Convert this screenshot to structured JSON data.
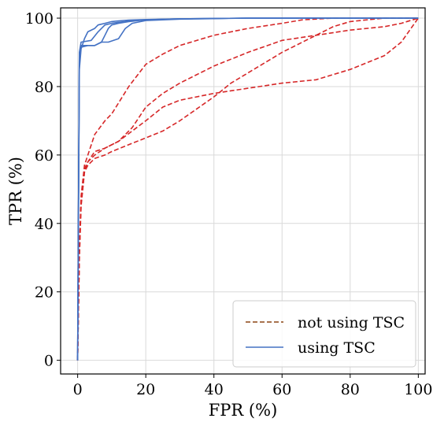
{
  "chart_data": {
    "type": "line",
    "title": "",
    "xlabel": "FPR (%)",
    "ylabel": "TPR (%)",
    "xlim": [
      -5,
      102
    ],
    "ylim": [
      -4,
      103
    ],
    "xticks": [
      0,
      20,
      40,
      60,
      80,
      100
    ],
    "yticks": [
      0,
      20,
      40,
      60,
      80,
      100
    ],
    "grid": true,
    "legend_position": "lower-right",
    "legend": [
      {
        "label": "not using TSC",
        "style": "dashed",
        "color": "#8B4513"
      },
      {
        "label": "using TSC",
        "style": "solid",
        "color": "#4472C4"
      }
    ],
    "series": [
      {
        "group": "not using TSC",
        "style": "dashed",
        "color": "#D62728",
        "x": [
          0,
          0.5,
          1,
          2,
          3,
          5,
          8,
          12,
          16,
          20,
          25,
          30,
          40,
          50,
          60,
          70,
          80,
          90,
          95,
          100
        ],
        "y": [
          0,
          30,
          45,
          55,
          58,
          60,
          62,
          64,
          67,
          70,
          74,
          76,
          78,
          79.5,
          81,
          82,
          85,
          89,
          93,
          100
        ]
      },
      {
        "group": "not using TSC",
        "style": "dashed",
        "color": "#D62728",
        "x": [
          0,
          0.5,
          1,
          2,
          3,
          5,
          8,
          10,
          15,
          20,
          25,
          30,
          40,
          50,
          60,
          66,
          75,
          85,
          100
        ],
        "y": [
          0,
          32,
          48,
          57,
          60,
          66,
          70,
          72,
          80,
          86.5,
          89.5,
          92,
          95,
          97,
          98.5,
          99.5,
          100,
          100,
          100
        ]
      },
      {
        "group": "not using TSC",
        "style": "dashed",
        "color": "#D62728",
        "x": [
          0,
          0.5,
          1,
          2,
          3,
          5,
          8,
          10,
          15,
          20,
          25,
          30,
          35,
          40,
          45,
          50,
          60,
          70,
          75,
          80,
          90,
          100
        ],
        "y": [
          0,
          30,
          46,
          55,
          57,
          59,
          60,
          61,
          63,
          65,
          67,
          70,
          73.5,
          77,
          81,
          84,
          90,
          95,
          97.5,
          99,
          100,
          100
        ]
      },
      {
        "group": "not using TSC",
        "style": "dashed",
        "color": "#D62728",
        "x": [
          0,
          0.5,
          1,
          2,
          3,
          5,
          8,
          12,
          16,
          20,
          25,
          30,
          40,
          50,
          60,
          70,
          80,
          90,
          95,
          100
        ],
        "y": [
          0,
          32,
          47,
          56,
          58,
          61,
          62,
          64,
          68,
          74,
          78,
          81,
          86,
          90,
          93.5,
          95,
          96.5,
          97.5,
          98.5,
          100
        ]
      },
      {
        "group": "using TSC",
        "style": "solid",
        "color": "#4472C4",
        "x": [
          0,
          0.5,
          1,
          4,
          6,
          8,
          10,
          12,
          14,
          16,
          20,
          30,
          50,
          80,
          100
        ],
        "y": [
          0,
          90,
          93,
          93.5,
          96,
          98,
          98.5,
          98.8,
          99,
          99.3,
          99.5,
          99.8,
          100,
          100,
          100
        ]
      },
      {
        "group": "using TSC",
        "style": "solid",
        "color": "#4472C4",
        "x": [
          0,
          0.5,
          1,
          2,
          5,
          7,
          8,
          9,
          10,
          12,
          15,
          20,
          30,
          50,
          100
        ],
        "y": [
          0,
          88,
          92,
          92,
          92,
          93,
          95,
          97,
          98,
          98.5,
          99,
          99.5,
          99.8,
          100,
          100
        ]
      },
      {
        "group": "using TSC",
        "style": "solid",
        "color": "#4472C4",
        "x": [
          0,
          0.5,
          1,
          3,
          5,
          7,
          9,
          12,
          14,
          16,
          20,
          30,
          50,
          100
        ],
        "y": [
          0,
          89,
          91.5,
          92,
          92,
          93,
          93,
          94,
          97,
          98.5,
          99.3,
          99.7,
          100,
          100
        ]
      },
      {
        "group": "using TSC",
        "style": "solid",
        "color": "#4472C4",
        "x": [
          0,
          0.5,
          1,
          2,
          3,
          5,
          6,
          8,
          10,
          12,
          15,
          20,
          30,
          50,
          100
        ],
        "y": [
          0,
          85,
          91,
          94,
          96,
          97,
          98,
          98.5,
          99,
          99.2,
          99.4,
          99.6,
          99.8,
          100,
          100
        ]
      }
    ]
  }
}
